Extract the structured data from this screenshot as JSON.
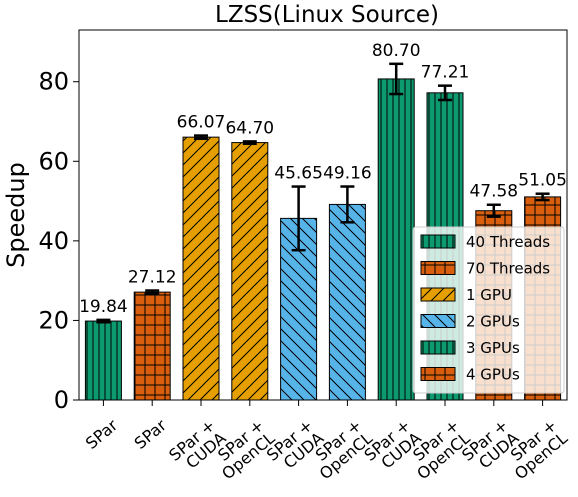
{
  "chart_data": {
    "type": "bar",
    "title": "LZSS(Linux Source)",
    "xlabel": "",
    "ylabel": "Speedup",
    "ylim": [
      0,
      93
    ],
    "yticks": [
      0,
      20,
      40,
      60,
      80
    ],
    "grid": false,
    "legend_position": "center-right",
    "categories": [
      "SPar",
      "SPar",
      "SPar +\nCUDA",
      "SPar +\nOpenCL",
      "SPar +\nCUDA",
      "SPar +\nOpenCL",
      "SPar +\nCUDA",
      "SPar +\nOpenCL",
      "SPar +\nCUDA",
      "SPar +\nOpenCL"
    ],
    "values": [
      19.84,
      27.12,
      66.07,
      64.7,
      45.65,
      49.16,
      80.7,
      77.21,
      47.58,
      51.05
    ],
    "value_labels": [
      "19.84",
      "27.12",
      "66.07",
      "64.70",
      "45.65",
      "49.16",
      "80.70",
      "77.21",
      "47.58",
      "51.05"
    ],
    "errors": [
      0.3,
      0.4,
      0.4,
      0.3,
      8.0,
      4.5,
      3.8,
      1.8,
      1.5,
      0.8
    ],
    "bar_groups": [
      0,
      1,
      2,
      2,
      3,
      3,
      4,
      4,
      5,
      5
    ],
    "series": [
      {
        "name": "40 Threads",
        "color": "#0e9a6f",
        "hatch": "vertical"
      },
      {
        "name": "70 Threads",
        "color": "#d95f0e",
        "hatch": "grid"
      },
      {
        "name": "1 GPU",
        "color": "#e69f00",
        "hatch": "diagonal-up"
      },
      {
        "name": "2 GPUs",
        "color": "#56b4e9",
        "hatch": "diagonal-down"
      },
      {
        "name": "3 GPUs",
        "color": "#0e9a6f",
        "hatch": "vertical"
      },
      {
        "name": "4 GPUs",
        "color": "#d95f0e",
        "hatch": "grid"
      }
    ]
  }
}
